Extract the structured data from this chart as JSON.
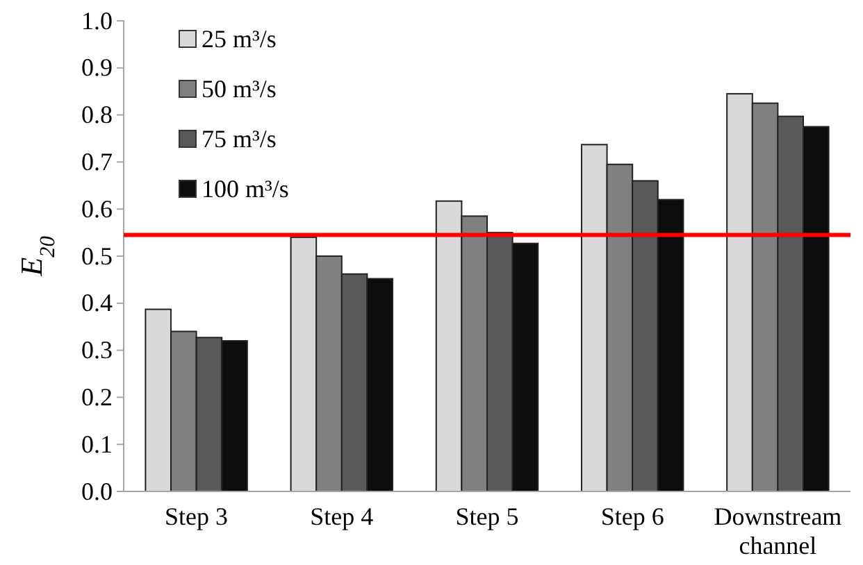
{
  "chart_data": {
    "type": "bar",
    "ylabel": "E$_{20}$",
    "categories": [
      "Step 3",
      "Step 4",
      "Step 5",
      "Step 6",
      "Downstream channel"
    ],
    "series": [
      {
        "name": "25 m³/s",
        "color": "#d9d9d9",
        "values": [
          0.387,
          0.54,
          0.617,
          0.737,
          0.845
        ]
      },
      {
        "name": "50 m³/s",
        "color": "#808080",
        "values": [
          0.34,
          0.5,
          0.585,
          0.695,
          0.825
        ]
      },
      {
        "name": "75 m³/s",
        "color": "#595959",
        "values": [
          0.327,
          0.462,
          0.55,
          0.66,
          0.797
        ]
      },
      {
        "name": "100 m³/s",
        "color": "#0d0d0d",
        "values": [
          0.32,
          0.452,
          0.527,
          0.62,
          0.775
        ]
      }
    ],
    "ylim": [
      0,
      1
    ],
    "yticks": [
      {
        "value": 0,
        "label": "0.0"
      },
      0.1,
      0.2,
      0.3,
      0.4,
      0.5,
      0.6,
      0.7,
      0.8,
      0.9,
      {
        "value": 1,
        "label": "1.0"
      }
    ],
    "ref_lines": [
      {
        "axis": "y",
        "value": 0.545,
        "color": "#ff0000"
      }
    ],
    "legend": "top left",
    "grid": false
  }
}
